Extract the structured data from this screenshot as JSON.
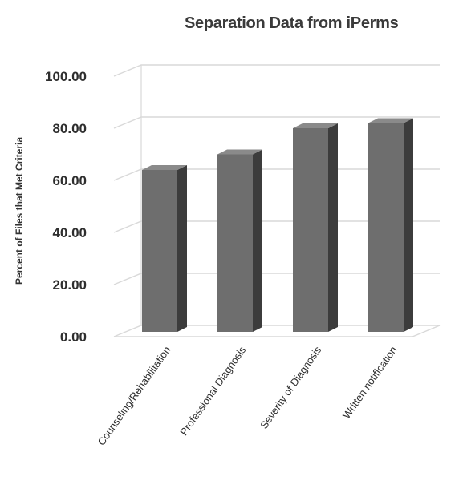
{
  "chart_data": {
    "type": "bar",
    "title": "Separation Data from iPerms",
    "xlabel": "",
    "ylabel": "Percent of Files that Met Criteria",
    "categories": [
      "Counseling/Rehabilitation",
      "Professional Diagnosis",
      "Severity of Diagnosis",
      "Written notification"
    ],
    "values": [
      64,
      70,
      80,
      82
    ],
    "ylim": [
      0,
      100
    ],
    "yticks": [
      "0.00",
      "20.00",
      "40.00",
      "60.00",
      "80.00",
      "100.00"
    ],
    "grid": true,
    "legend": "none",
    "style": "3d-column"
  },
  "colors": {
    "bar_front": "#6e6e6e",
    "bar_side": "#3c3c3c",
    "bar_top": "#8a8a8a",
    "grid": "#d9d9d9"
  }
}
